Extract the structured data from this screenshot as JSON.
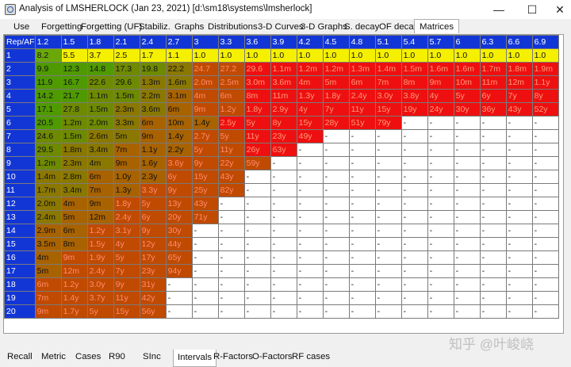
{
  "window": {
    "title": "Analysis of LMSHERLOCK (Jan 23, 2021) [d:\\sm18\\systems\\lmsherlock]",
    "minimize_glyph": "—",
    "maximize_glyph": "☐",
    "close_glyph": "✕"
  },
  "tabs": [
    "Use",
    "Forgetting",
    "Forgetting (UF)",
    "Stabiliz.",
    "Graphs",
    "Distributions",
    "3-D Curves",
    "3-D Graphs",
    "S. decay",
    "OF decay",
    "Matrices"
  ],
  "active_tab": "Matrices",
  "matrix": {
    "corner": "Rep/AF",
    "columns": [
      "1.2",
      "1.5",
      "1.8",
      "2.1",
      "2.4",
      "2.7",
      "3",
      "3.3",
      "3.6",
      "3.9",
      "4.2",
      "4.5",
      "4.8",
      "5.1",
      "5.4",
      "5.7",
      "6",
      "6.3",
      "6.6",
      "6.9"
    ],
    "rows": [
      {
        "rep": "1",
        "cells": [
          "8.2",
          "5.5",
          "3.7",
          "2.5",
          "1.7",
          "1.1",
          "1.0",
          "1.0",
          "1.0",
          "1.0",
          "1.0",
          "1.0",
          "1.0",
          "1.0",
          "1.0",
          "1.0",
          "1.0",
          "1.0",
          "1.0",
          "1.0"
        ]
      },
      {
        "rep": "2",
        "cells": [
          "9.9",
          "12.3",
          "14.8",
          "17.3",
          "19.8",
          "22.2",
          "24.7",
          "27.2",
          "29.6",
          "1.1m",
          "1.2m",
          "1.2m",
          "1.3m",
          "1.4m",
          "1.5m",
          "1.6m",
          "1.6m",
          "1.7m",
          "1.8m",
          "1.9m"
        ]
      },
      {
        "rep": "3",
        "cells": [
          "11.9",
          "16.7",
          "22.6",
          "29.6",
          "1.3m",
          "1.6m",
          "2.0m",
          "2.5m",
          "3.0m",
          "3.6m",
          "4m",
          "5m",
          "6m",
          "7m",
          "8m",
          "9m",
          "10m",
          "11m",
          "12m",
          "1.1y"
        ]
      },
      {
        "rep": "4",
        "cells": [
          "14.2",
          "21.7",
          "1.1m",
          "1.5m",
          "2.2m",
          "3.1m",
          "4m",
          "6m",
          "8m",
          "11m",
          "1.3y",
          "1.8y",
          "2.4y",
          "3.0y",
          "3.8y",
          "4y",
          "5y",
          "6y",
          "7y",
          "8y"
        ]
      },
      {
        "rep": "5",
        "cells": [
          "17.1",
          "27.8",
          "1.5m",
          "2.3m",
          "3.6m",
          "6m",
          "9m",
          "1.2y",
          "1.8y",
          "2.9y",
          "4y",
          "7y",
          "11y",
          "15y",
          "19y",
          "24y",
          "30y",
          "36y",
          "43y",
          "52y"
        ]
      },
      {
        "rep": "6",
        "cells": [
          "20.5",
          "1.2m",
          "2.0m",
          "3.3m",
          "6m",
          "10m",
          "1.4y",
          "2.5y",
          "5y",
          "8y",
          "15y",
          "28y",
          "51y",
          "79y",
          "-",
          "-",
          "-",
          "-",
          "-",
          "-"
        ]
      },
      {
        "rep": "7",
        "cells": [
          "24.6",
          "1.5m",
          "2.6m",
          "5m",
          "9m",
          "1.4y",
          "2.7y",
          "5y",
          "11y",
          "23y",
          "49y",
          "-",
          "-",
          "-",
          "-",
          "-",
          "-",
          "-",
          "-",
          "-"
        ]
      },
      {
        "rep": "8",
        "cells": [
          "29.5",
          "1.8m",
          "3.4m",
          "7m",
          "1.1y",
          "2.2y",
          "5y",
          "11y",
          "26y",
          "63y",
          "-",
          "-",
          "-",
          "-",
          "-",
          "-",
          "-",
          "-",
          "-",
          "-"
        ]
      },
      {
        "rep": "9",
        "cells": [
          "1.2m",
          "2.3m",
          "4m",
          "9m",
          "1.6y",
          "3.6y",
          "9y",
          "22y",
          "59y",
          "-",
          "-",
          "-",
          "-",
          "-",
          "-",
          "-",
          "-",
          "-",
          "-",
          "-"
        ]
      },
      {
        "rep": "10",
        "cells": [
          "1.4m",
          "2.8m",
          "6m",
          "1.0y",
          "2.3y",
          "6y",
          "15y",
          "43y",
          "-",
          "-",
          "-",
          "-",
          "-",
          "-",
          "-",
          "-",
          "-",
          "-",
          "-",
          "-"
        ]
      },
      {
        "rep": "11",
        "cells": [
          "1.7m",
          "3.4m",
          "7m",
          "1.3y",
          "3.3y",
          "9y",
          "25y",
          "82y",
          "-",
          "-",
          "-",
          "-",
          "-",
          "-",
          "-",
          "-",
          "-",
          "-",
          "-",
          "-"
        ]
      },
      {
        "rep": "12",
        "cells": [
          "2.0m",
          "4m",
          "9m",
          "1.8y",
          "5y",
          "13y",
          "43y",
          "-",
          "-",
          "-",
          "-",
          "-",
          "-",
          "-",
          "-",
          "-",
          "-",
          "-",
          "-",
          "-"
        ]
      },
      {
        "rep": "13",
        "cells": [
          "2.4m",
          "5m",
          "12m",
          "2.4y",
          "6y",
          "20y",
          "71y",
          "-",
          "-",
          "-",
          "-",
          "-",
          "-",
          "-",
          "-",
          "-",
          "-",
          "-",
          "-",
          "-"
        ]
      },
      {
        "rep": "14",
        "cells": [
          "2.9m",
          "6m",
          "1.2y",
          "3.1y",
          "9y",
          "30y",
          "-",
          "-",
          "-",
          "-",
          "-",
          "-",
          "-",
          "-",
          "-",
          "-",
          "-",
          "-",
          "-",
          "-"
        ]
      },
      {
        "rep": "15",
        "cells": [
          "3.5m",
          "8m",
          "1.5y",
          "4y",
          "12y",
          "44y",
          "-",
          "-",
          "-",
          "-",
          "-",
          "-",
          "-",
          "-",
          "-",
          "-",
          "-",
          "-",
          "-",
          "-"
        ]
      },
      {
        "rep": "16",
        "cells": [
          "4m",
          "9m",
          "1.9y",
          "5y",
          "17y",
          "65y",
          "-",
          "-",
          "-",
          "-",
          "-",
          "-",
          "-",
          "-",
          "-",
          "-",
          "-",
          "-",
          "-",
          "-"
        ]
      },
      {
        "rep": "17",
        "cells": [
          "5m",
          "12m",
          "2.4y",
          "7y",
          "23y",
          "94y",
          "-",
          "-",
          "-",
          "-",
          "-",
          "-",
          "-",
          "-",
          "-",
          "-",
          "-",
          "-",
          "-",
          "-"
        ]
      },
      {
        "rep": "18",
        "cells": [
          "6m",
          "1.2y",
          "3.0y",
          "9y",
          "31y",
          "-",
          "-",
          "-",
          "-",
          "-",
          "-",
          "-",
          "-",
          "-",
          "-",
          "-",
          "-",
          "-",
          "-",
          "-"
        ]
      },
      {
        "rep": "19",
        "cells": [
          "7m",
          "1.4y",
          "3.7y",
          "11y",
          "42y",
          "-",
          "-",
          "-",
          "-",
          "-",
          "-",
          "-",
          "-",
          "-",
          "-",
          "-",
          "-",
          "-",
          "-",
          "-"
        ]
      },
      {
        "rep": "20",
        "cells": [
          "9m",
          "1.7y",
          "5y",
          "15y",
          "56y",
          "-",
          "-",
          "-",
          "-",
          "-",
          "-",
          "-",
          "-",
          "-",
          "-",
          "-",
          "-",
          "-",
          "-",
          "-"
        ]
      }
    ]
  },
  "colors": {
    "header_blue": "#1236d6",
    "yellow": "#f5f000",
    "red": "#ee1010",
    "dark_orange": "#c04a00",
    "brown": "#a86300",
    "olive": "#8a7800",
    "olive_green": "#6e8a00",
    "green": "#4f9a00",
    "first_cell_green": "#6aa80a",
    "empty": "#ffffff"
  },
  "bottom_tabs": [
    "Recall",
    "Metric",
    "Cases",
    "R90",
    "SInc",
    "Intervals",
    "R-Factors",
    "O-Factors",
    "RF cases"
  ],
  "active_bottom_tab": "Intervals",
  "watermark": "知乎 @叶峻峣"
}
